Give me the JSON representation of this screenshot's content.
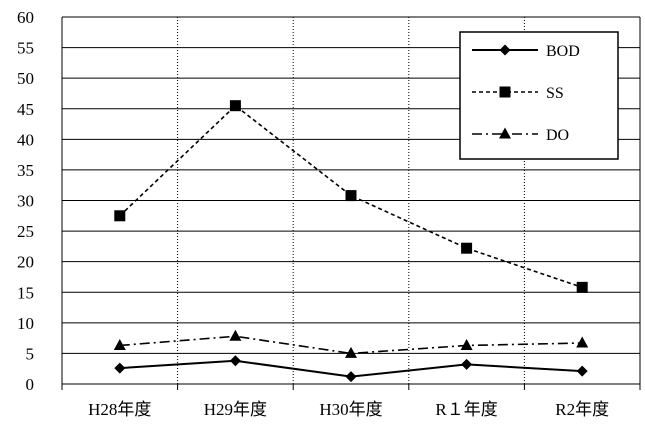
{
  "chart_data": {
    "type": "line",
    "title": "",
    "xlabel": "",
    "ylabel": "",
    "categories": [
      "H28年度",
      "H29年度",
      "H30年度",
      "R１年度",
      "R2年度"
    ],
    "ylim": [
      0,
      60
    ],
    "yticks": [
      "0",
      "5",
      "10",
      "15",
      "20",
      "25",
      "30",
      "35",
      "40",
      "45",
      "50",
      "55",
      "60"
    ],
    "grid": {
      "horizontal": true,
      "vertical": "dotted"
    },
    "legend_position": "top-right",
    "series": [
      {
        "name": "BOD",
        "values": [
          2.6,
          3.8,
          1.2,
          3.2,
          2.1
        ],
        "line_style": "solid",
        "marker": "diamond",
        "color": "#000000"
      },
      {
        "name": "SS",
        "values": [
          27.5,
          45.5,
          30.8,
          22.2,
          15.8
        ],
        "line_style": "dashed",
        "marker": "square",
        "color": "#000000"
      },
      {
        "name": "DO",
        "values": [
          6.3,
          7.8,
          5.0,
          6.3,
          6.7
        ],
        "line_style": "dash-dot",
        "marker": "triangle",
        "color": "#000000"
      }
    ]
  }
}
